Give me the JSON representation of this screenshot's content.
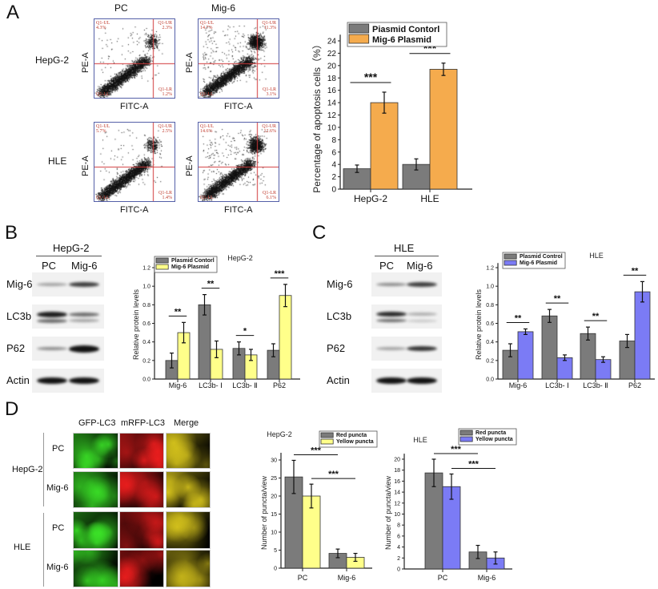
{
  "panel_A": {
    "letter": "A",
    "column_titles": [
      "PC",
      "Mig-6"
    ],
    "row_labels": [
      "HepG-2",
      "HLE"
    ],
    "x_axis_label": "FITC-A",
    "y_axis_label": "PE-A",
    "flow_plots": [
      {
        "row": "HepG-2",
        "col": "PC",
        "UL": [
          "Q1-UL",
          "4.3%"
        ],
        "UR": [
          "Q1-UR",
          "2.3%"
        ],
        "LR": [
          "Q1-LR",
          "1.2%"
        ],
        "LL": [
          "Q1-LL",
          ""
        ]
      },
      {
        "row": "HepG-2",
        "col": "Mig-6",
        "UL": [
          "Q1-UL",
          "14.7%"
        ],
        "UR": [
          "Q1-UR",
          "11.3%"
        ],
        "LR": [
          "Q1-LR",
          "3.1%"
        ],
        "LL": [
          "Q1-LL",
          ""
        ]
      },
      {
        "row": "HLE",
        "col": "PC",
        "UL": [
          "Q1-UL",
          "5.7%"
        ],
        "UR": [
          "Q1-UR",
          "2.5%"
        ],
        "LR": [
          "Q1-LR",
          "1.4%"
        ],
        "LL": [
          "Q1-LL",
          ""
        ]
      },
      {
        "row": "HLE",
        "col": "Mig-6",
        "UL": [
          "Q1-UL",
          "14.6%"
        ],
        "UR": [
          "Q1-UR",
          "12.6%"
        ],
        "LR": [
          "Q1-LR",
          "6.1%"
        ],
        "LL": [
          "Q1-LL",
          ""
        ]
      }
    ]
  },
  "panel_B": {
    "letter": "B",
    "blot_title": "HepG-2",
    "lanes": [
      "PC",
      "Mig-6"
    ],
    "proteins": [
      "Mig-6",
      "LC3b",
      "P62",
      "Actin"
    ]
  },
  "panel_C": {
    "letter": "C",
    "blot_title": "HLE",
    "lanes": [
      "PC",
      "Mig-6"
    ],
    "proteins": [
      "Mig-6",
      "LC3b",
      "P62",
      "Actin"
    ]
  },
  "panel_D": {
    "letter": "D",
    "column_titles": [
      "GFP-LC3",
      "mRFP-LC3",
      "Merge"
    ],
    "groups": [
      {
        "label": "HepG-2",
        "rows": [
          "PC",
          "Mig-6"
        ]
      },
      {
        "label": "HLE",
        "rows": [
          "PC",
          "Mig-6"
        ]
      }
    ]
  },
  "chart_data": [
    {
      "id": "A",
      "type": "bar",
      "title": "",
      "ylabel": "Percentage of apoptosis cells（%）",
      "xlabel": "",
      "categories": [
        "HepG-2",
        "HLE"
      ],
      "ylim": [
        0,
        25
      ],
      "yticks": [
        0,
        2,
        4,
        6,
        8,
        10,
        12,
        14,
        16,
        18,
        20,
        22,
        24
      ],
      "tick_decimals": 0,
      "legend_position": "top",
      "series": [
        {
          "name": "Piasmid Contorl",
          "color": "#7b7b7b",
          "values": [
            3.3,
            4.0
          ],
          "errors": [
            0.6,
            0.9
          ]
        },
        {
          "name": "Mig-6 Plasmid",
          "color": "#f5ab4d",
          "values": [
            14.0,
            19.4
          ],
          "errors": [
            1.7,
            1.0
          ]
        }
      ],
      "significance": [
        {
          "from": [
            0,
            0
          ],
          "to": [
            0,
            1
          ],
          "label": "***"
        },
        {
          "from": [
            1,
            0
          ],
          "to": [
            1,
            1
          ],
          "label": "***"
        }
      ]
    },
    {
      "id": "B",
      "type": "bar",
      "title": "HepG-2",
      "ylabel": "Relative protein levels",
      "xlabel": "",
      "categories": [
        "Mig-6",
        "LC3b- Ⅰ",
        "LC3b- Ⅱ",
        "P62"
      ],
      "ylim": [
        0,
        1.25
      ],
      "yticks": [
        0,
        0.2,
        0.4,
        0.6,
        0.8,
        1.0,
        1.2
      ],
      "tick_decimals": 1,
      "legend_position": "top-left",
      "series": [
        {
          "name": "Plasmid Contorl",
          "color": "#7b7b7b",
          "values": [
            0.2,
            0.8,
            0.33,
            0.31
          ],
          "errors": [
            0.08,
            0.11,
            0.07,
            0.07
          ]
        },
        {
          "name": "Mig-6 Plasmid",
          "color": "#ffff8a",
          "values": [
            0.5,
            0.32,
            0.26,
            0.9
          ],
          "errors": [
            0.11,
            0.09,
            0.06,
            0.12
          ]
        }
      ],
      "significance": [
        {
          "from": [
            0,
            0
          ],
          "to": [
            0,
            1
          ],
          "label": "**"
        },
        {
          "from": [
            1,
            0
          ],
          "to": [
            1,
            1
          ],
          "label": "**"
        },
        {
          "from": [
            2,
            0
          ],
          "to": [
            2,
            1
          ],
          "label": "*"
        },
        {
          "from": [
            3,
            0
          ],
          "to": [
            3,
            1
          ],
          "label": "***"
        }
      ]
    },
    {
      "id": "C",
      "type": "bar",
      "title": "HLE",
      "ylabel": "Relative protein levels",
      "xlabel": "",
      "categories": [
        "Mig-6",
        "LC3b- Ⅰ",
        "LC3b- Ⅱ",
        "P62"
      ],
      "ylim": [
        0,
        1.25
      ],
      "yticks": [
        0,
        0.2,
        0.4,
        0.6,
        0.8,
        1.0,
        1.2
      ],
      "tick_decimals": 1,
      "legend_position": "top-left",
      "series": [
        {
          "name": "Plasmid Control",
          "color": "#7b7b7b",
          "values": [
            0.31,
            0.68,
            0.49,
            0.41
          ],
          "errors": [
            0.07,
            0.07,
            0.07,
            0.07
          ]
        },
        {
          "name": "Mig-6 Plasmid",
          "color": "#7b7bf5",
          "values": [
            0.51,
            0.23,
            0.21,
            0.94
          ],
          "errors": [
            0.03,
            0.03,
            0.03,
            0.11
          ]
        }
      ],
      "significance": [
        {
          "from": [
            0,
            0
          ],
          "to": [
            0,
            1
          ],
          "label": "**"
        },
        {
          "from": [
            1,
            0
          ],
          "to": [
            1,
            1
          ],
          "label": "**"
        },
        {
          "from": [
            2,
            0
          ],
          "to": [
            2,
            1
          ],
          "label": "**"
        },
        {
          "from": [
            3,
            0
          ],
          "to": [
            3,
            1
          ],
          "label": "**"
        }
      ]
    },
    {
      "id": "D1",
      "type": "bar",
      "title": "HepG-2",
      "ylabel": "Number of puncta/view",
      "xlabel": "",
      "categories": [
        "PC",
        "Mig-6"
      ],
      "ylim": [
        0,
        32
      ],
      "yticks": [
        0,
        5,
        10,
        15,
        20,
        25,
        30
      ],
      "tick_decimals": 0,
      "legend_position": "top-right",
      "series": [
        {
          "name": "Red puncta",
          "color": "#7b7b7b",
          "values": [
            25.3,
            4.1
          ],
          "errors": [
            4.6,
            1.2
          ]
        },
        {
          "name": "Yellow puncta",
          "color": "#ffff8a",
          "values": [
            20.0,
            3.0
          ],
          "errors": [
            3.3,
            1.1
          ]
        }
      ],
      "significance": [
        {
          "from": [
            0,
            0
          ],
          "to": [
            1,
            0
          ],
          "label": "***"
        },
        {
          "from": [
            0,
            1
          ],
          "to": [
            1,
            1
          ],
          "label": "***"
        }
      ]
    },
    {
      "id": "D2",
      "type": "bar",
      "title": "HLE",
      "ylabel": "Number of puncta/view",
      "xlabel": "",
      "categories": [
        "PC",
        "Mig-6"
      ],
      "ylim": [
        0,
        21
      ],
      "yticks": [
        0,
        2,
        4,
        6,
        8,
        10,
        12,
        14,
        16,
        18,
        20
      ],
      "tick_decimals": 0,
      "legend_position": "top-right",
      "series": [
        {
          "name": "Red puncta",
          "color": "#7b7b7b",
          "values": [
            17.5,
            3.1
          ],
          "errors": [
            2.5,
            1.2
          ]
        },
        {
          "name": "Yellow puncta",
          "color": "#7b7bf5",
          "values": [
            15.0,
            2.0
          ],
          "errors": [
            2.3,
            1.1
          ]
        }
      ],
      "significance": [
        {
          "from": [
            0,
            0
          ],
          "to": [
            1,
            0
          ],
          "label": "***"
        },
        {
          "from": [
            0,
            1
          ],
          "to": [
            1,
            1
          ],
          "label": "***"
        }
      ]
    }
  ]
}
